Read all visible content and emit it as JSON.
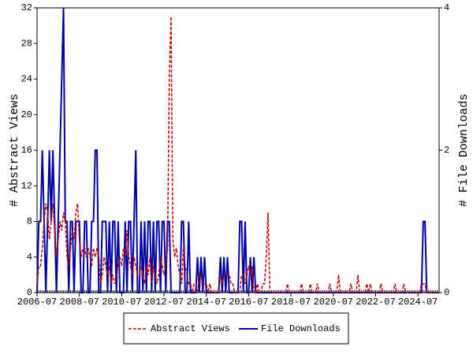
{
  "chart_data": {
    "type": "line",
    "y_label": "# Abstract Views",
    "y2_label": "# File Downloads",
    "x": [
      "2006-07",
      "2006-08",
      "2006-09",
      "2006-10",
      "2006-11",
      "2006-12",
      "2007-01",
      "2007-02",
      "2007-03",
      "2007-04",
      "2007-05",
      "2007-06",
      "2007-07",
      "2007-08",
      "2007-09",
      "2007-10",
      "2007-11",
      "2007-12",
      "2008-01",
      "2008-02",
      "2008-03",
      "2008-04",
      "2008-05",
      "2008-06",
      "2008-07",
      "2008-08",
      "2008-09",
      "2008-10",
      "2008-11",
      "2008-12",
      "2009-01",
      "2009-02",
      "2009-03",
      "2009-04",
      "2009-05",
      "2009-06",
      "2009-07",
      "2009-08",
      "2009-09",
      "2009-10",
      "2009-11",
      "2009-12",
      "2010-01",
      "2010-02",
      "2010-03",
      "2010-04",
      "2010-05",
      "2010-06",
      "2010-07",
      "2010-08",
      "2010-09",
      "2010-10",
      "2010-11",
      "2010-12",
      "2011-01",
      "2011-02",
      "2011-03",
      "2011-04",
      "2011-05",
      "2011-06",
      "2011-07",
      "2011-08",
      "2011-09",
      "2011-10",
      "2011-11",
      "2011-12",
      "2012-01",
      "2012-02",
      "2012-03",
      "2012-04",
      "2012-05",
      "2012-06",
      "2012-07",
      "2012-08",
      "2012-09",
      "2012-10",
      "2012-11",
      "2012-12",
      "2013-01",
      "2013-02",
      "2013-03",
      "2013-04",
      "2013-05",
      "2013-06",
      "2013-07",
      "2013-08",
      "2013-09",
      "2013-10",
      "2013-11",
      "2013-12",
      "2014-01",
      "2014-02",
      "2014-03",
      "2014-04",
      "2014-05",
      "2014-06",
      "2014-07",
      "2014-08",
      "2014-09",
      "2014-10",
      "2014-11",
      "2014-12",
      "2015-01",
      "2015-02",
      "2015-03",
      "2015-04",
      "2015-05",
      "2015-06",
      "2015-07",
      "2015-08",
      "2015-09",
      "2015-10",
      "2015-11",
      "2015-12",
      "2016-01",
      "2016-02",
      "2016-03",
      "2016-04",
      "2016-05",
      "2016-06",
      "2016-07",
      "2016-08",
      "2016-09",
      "2016-10",
      "2016-11",
      "2016-12",
      "2017-01",
      "2017-02",
      "2017-03",
      "2017-04",
      "2017-05",
      "2017-06",
      "2017-07",
      "2017-08",
      "2017-09",
      "2017-10",
      "2017-11",
      "2017-12",
      "2018-01",
      "2018-02",
      "2018-03",
      "2018-04",
      "2018-05",
      "2018-06",
      "2018-07",
      "2018-08",
      "2018-09",
      "2018-10",
      "2018-11",
      "2018-12",
      "2019-01",
      "2019-02",
      "2019-03",
      "2019-04",
      "2019-05",
      "2019-06",
      "2019-07",
      "2019-08",
      "2019-09",
      "2019-10",
      "2019-11",
      "2019-12",
      "2020-01",
      "2020-02",
      "2020-03",
      "2020-04",
      "2020-05",
      "2020-06",
      "2020-07",
      "2020-08",
      "2020-09",
      "2020-10",
      "2020-11",
      "2020-12",
      "2021-01",
      "2021-02",
      "2021-03",
      "2021-04",
      "2021-05",
      "2021-06",
      "2021-07",
      "2021-08",
      "2021-09",
      "2021-10",
      "2021-11",
      "2021-12",
      "2022-01",
      "2022-02",
      "2022-03",
      "2022-04",
      "2022-05",
      "2022-06",
      "2022-07",
      "2022-08",
      "2022-09",
      "2022-10",
      "2022-11",
      "2022-12",
      "2023-01",
      "2023-02",
      "2023-03",
      "2023-04",
      "2023-05",
      "2023-06",
      "2023-07",
      "2023-08",
      "2023-09",
      "2023-10",
      "2023-11",
      "2023-12",
      "2024-01",
      "2024-02",
      "2024-03",
      "2024-04",
      "2024-05",
      "2024-06",
      "2024-07",
      "2024-08",
      "2024-09",
      "2024-10",
      "2024-11",
      "2024-12",
      "2025-01",
      "2025-02",
      "2025-03",
      "2025-04",
      "2025-05",
      "2025-06",
      "2025-07"
    ],
    "xticks": [
      "2006-07",
      "2008-07",
      "2010-07",
      "2012-07",
      "2014-07",
      "2016-07",
      "2018-07",
      "2020-07",
      "2022-07",
      "2024-07"
    ],
    "ylim": [
      0,
      32
    ],
    "yticks": [
      0,
      4,
      8,
      12,
      16,
      20,
      24,
      28,
      32
    ],
    "y2lim": [
      0,
      4
    ],
    "y2ticks": [
      0,
      2,
      4
    ],
    "series": [
      {
        "name": "Abstract Views",
        "color": "#c00000",
        "dash": true,
        "values": [
          1,
          3,
          3,
          5,
          8,
          10,
          9,
          6,
          8,
          10,
          7,
          4,
          6,
          8,
          7,
          9,
          8,
          4,
          3,
          5,
          7,
          6,
          9,
          10,
          6,
          4,
          5,
          5,
          4,
          5,
          4,
          3,
          5,
          4,
          5,
          4,
          1,
          2,
          4,
          3,
          2,
          3,
          1,
          2,
          1,
          2,
          3,
          4,
          3,
          5,
          4,
          7,
          4,
          3,
          2,
          4,
          3,
          2,
          2,
          3,
          2,
          1,
          3,
          2,
          4,
          1,
          3,
          2,
          1,
          2,
          4,
          3,
          2,
          3,
          5,
          24,
          31,
          6,
          4,
          5,
          3,
          2,
          1,
          5,
          3,
          2,
          1,
          1,
          0,
          1,
          1,
          0,
          2,
          2,
          1,
          1,
          1,
          0,
          1,
          0,
          0,
          0,
          0,
          0,
          2,
          1,
          2,
          2,
          2,
          2,
          1,
          1,
          0,
          0,
          0,
          0,
          2,
          2,
          1,
          2,
          3,
          2,
          3,
          0,
          0,
          1,
          0,
          0,
          1,
          1,
          4,
          9,
          0,
          0,
          0,
          0,
          0,
          0,
          0,
          0,
          0,
          0,
          1,
          0,
          0,
          0,
          0,
          0,
          0,
          0,
          1,
          0,
          0,
          0,
          0,
          1,
          0,
          0,
          0,
          1,
          0,
          0,
          0,
          0,
          0,
          0,
          1,
          0,
          0,
          0,
          0,
          2,
          0,
          0,
          0,
          0,
          0,
          0,
          1,
          0,
          0,
          0,
          2,
          0,
          0,
          0,
          0,
          1,
          0,
          1,
          0,
          0,
          0,
          0,
          0,
          1,
          0,
          0,
          0,
          0,
          0,
          0,
          0,
          1,
          0,
          0,
          0,
          0,
          1,
          0,
          0,
          0,
          0,
          0,
          0,
          0,
          0,
          0,
          1,
          1,
          1,
          0,
          0,
          0,
          0,
          0,
          0,
          0,
          0
        ]
      },
      {
        "name": "File Downloads",
        "color": "#0000a0",
        "axis": "y2",
        "values": [
          0,
          1,
          1,
          2,
          1,
          0,
          1,
          2,
          1,
          2,
          1,
          0,
          1,
          2,
          3,
          4,
          1,
          1,
          0,
          1,
          1,
          0,
          1,
          1,
          1,
          0,
          0,
          1,
          1,
          0,
          0,
          1,
          1,
          2,
          2,
          0,
          0,
          1,
          1,
          1,
          0,
          1,
          0,
          1,
          1,
          0,
          1,
          0,
          0,
          0,
          1,
          0,
          1,
          1,
          0,
          1,
          2,
          0,
          0,
          1,
          0,
          1,
          0,
          1,
          1,
          0,
          1,
          0,
          1,
          1,
          0,
          1,
          1,
          0,
          1,
          1,
          0,
          0,
          0,
          0,
          0,
          0,
          1,
          1,
          0,
          0,
          1,
          0,
          0,
          0,
          0,
          0.5,
          0,
          0.5,
          0,
          0.5,
          0,
          0,
          0,
          0,
          0,
          0,
          0,
          0,
          0.5,
          0,
          0.5,
          0,
          0.5,
          0,
          0,
          0,
          0,
          0,
          0,
          1,
          1,
          0,
          1,
          0,
          0,
          0.5,
          0,
          0.5,
          0,
          0,
          0,
          0,
          0,
          0,
          0,
          0,
          0,
          0,
          0,
          0,
          0,
          0,
          0,
          0,
          0,
          0,
          0,
          0,
          0,
          0,
          0,
          0,
          0,
          0,
          0,
          0,
          0,
          0,
          0,
          0,
          0,
          0,
          0,
          0,
          0,
          0,
          0,
          0,
          0,
          0,
          0,
          0,
          0,
          0,
          0,
          0,
          0,
          0,
          0,
          0,
          0,
          0,
          0,
          0,
          0,
          0,
          0,
          0,
          0,
          0,
          0,
          0,
          0,
          0,
          0,
          0,
          0,
          0,
          0,
          0,
          0,
          0,
          0,
          0,
          0,
          0,
          0,
          0,
          0,
          0,
          0,
          0,
          0,
          0,
          0,
          0,
          0,
          0,
          0,
          0,
          0,
          0,
          0,
          1,
          1,
          0,
          0,
          0,
          0,
          0,
          0,
          0,
          0
        ]
      }
    ]
  }
}
